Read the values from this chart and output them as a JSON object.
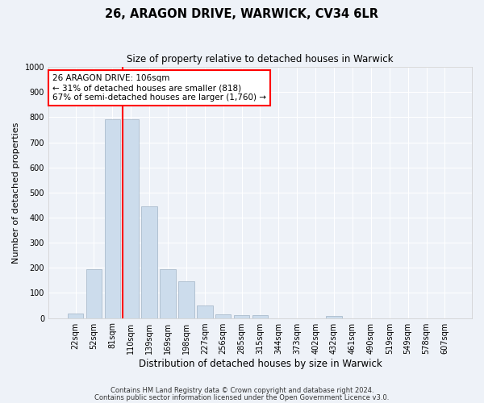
{
  "title1": "26, ARAGON DRIVE, WARWICK, CV34 6LR",
  "title2": "Size of property relative to detached houses in Warwick",
  "xlabel": "Distribution of detached houses by size in Warwick",
  "ylabel": "Number of detached properties",
  "bar_labels": [
    "22sqm",
    "52sqm",
    "81sqm",
    "110sqm",
    "139sqm",
    "169sqm",
    "198sqm",
    "227sqm",
    "256sqm",
    "285sqm",
    "315sqm",
    "344sqm",
    "373sqm",
    "402sqm",
    "432sqm",
    "461sqm",
    "490sqm",
    "519sqm",
    "549sqm",
    "578sqm",
    "607sqm"
  ],
  "bar_values": [
    18,
    195,
    790,
    790,
    445,
    195,
    145,
    50,
    15,
    12,
    10,
    0,
    0,
    0,
    8,
    0,
    0,
    0,
    0,
    0,
    0
  ],
  "bar_color": "#ccdcec",
  "bar_edgecolor": "#aabccc",
  "vline_color": "red",
  "vline_pos": 2.55,
  "ylim_max": 1000,
  "yticks": [
    0,
    100,
    200,
    300,
    400,
    500,
    600,
    700,
    800,
    900,
    1000
  ],
  "annotation_text": "26 ARAGON DRIVE: 106sqm\n← 31% of detached houses are smaller (818)\n67% of semi-detached houses are larger (1,760) →",
  "annotation_box_facecolor": "white",
  "annotation_box_edgecolor": "red",
  "footnote1": "Contains HM Land Registry data © Crown copyright and database right 2024.",
  "footnote2": "Contains public sector information licensed under the Open Government Licence v3.0.",
  "bg_color": "#eef2f8",
  "grid_color": "#ffffff"
}
